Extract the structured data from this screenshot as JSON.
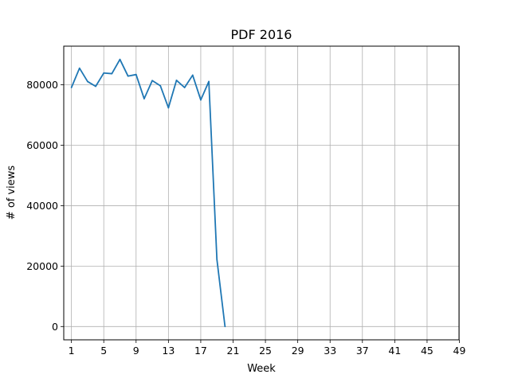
{
  "chart_data": {
    "type": "line",
    "title": "PDF 2016",
    "xlabel": "Week",
    "ylabel": "# of views",
    "xlim": [
      0.05,
      48.95
    ],
    "ylim": [
      -4400,
      92800
    ],
    "x_ticks": [
      1,
      5,
      9,
      13,
      17,
      21,
      25,
      29,
      33,
      37,
      41,
      45,
      49
    ],
    "y_ticks": [
      0,
      20000,
      40000,
      60000,
      80000
    ],
    "grid": true,
    "legend": "none",
    "series": [
      {
        "color": "#1f77b4",
        "x": [
          1,
          2,
          3,
          4,
          5,
          6,
          7,
          8,
          9,
          10,
          11,
          12,
          13,
          14,
          15,
          16,
          17,
          18,
          19,
          20
        ],
        "y": [
          79100,
          85500,
          81100,
          79500,
          83900,
          83700,
          88400,
          82900,
          83400,
          75400,
          81400,
          79700,
          72400,
          81500,
          79100,
          83200,
          75000,
          81100,
          22200,
          0
        ]
      }
    ]
  }
}
